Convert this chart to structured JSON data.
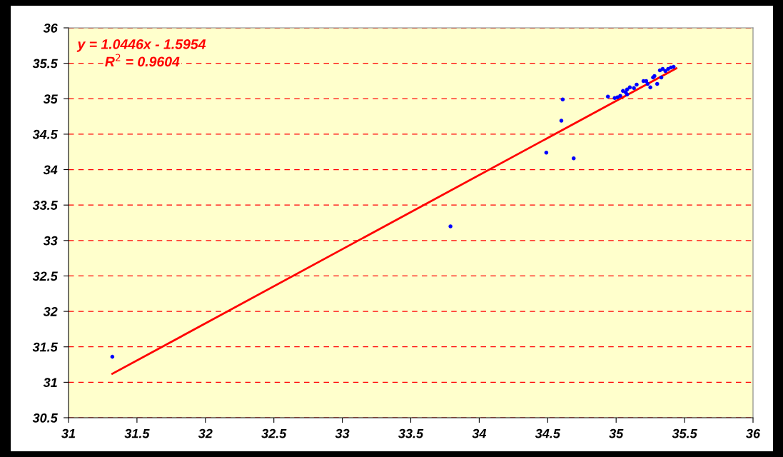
{
  "chart_data": {
    "type": "scatter",
    "x": [
      31.32,
      33.79,
      34.49,
      34.6,
      34.61,
      34.69,
      34.94,
      34.99,
      35.01,
      35.03,
      35.05,
      35.07,
      35.08,
      35.08,
      35.1,
      35.13,
      35.15,
      35.2,
      35.22,
      35.23,
      35.25,
      35.27,
      35.3,
      35.28,
      35.32,
      35.33,
      35.34,
      35.36,
      35.38,
      35.4,
      35.42
    ],
    "series": [
      {
        "color": "#0000ff",
        "marker": "circle",
        "values": [
          31.36,
          33.2,
          34.24,
          34.69,
          34.99,
          34.16,
          35.03,
          35.01,
          35.02,
          35.04,
          35.11,
          35.09,
          35.13,
          35.06,
          35.16,
          35.15,
          35.2,
          35.25,
          35.25,
          35.21,
          35.16,
          35.3,
          35.21,
          35.32,
          35.4,
          35.3,
          35.42,
          35.39,
          35.42,
          35.44,
          35.45
        ]
      },
      {
        "type": "line",
        "color": "#ff0000",
        "x": [
          31.32,
          35.44
        ],
        "values": [
          31.12,
          35.43
        ]
      }
    ],
    "xlim": [
      31,
      36
    ],
    "xticks": [
      31,
      31.5,
      32,
      32.5,
      33,
      33.5,
      34,
      34.5,
      35,
      35.5,
      36
    ],
    "ylim": [
      30.5,
      36
    ],
    "yticks": [
      30.5,
      31,
      31.5,
      32,
      32.5,
      33,
      33.5,
      34,
      34.5,
      35,
      35.5,
      36
    ],
    "grid": "y",
    "annotations": [
      "y = 1.0446x - 1.5954",
      "R$^{2}$ = 0.9604"
    ]
  }
}
